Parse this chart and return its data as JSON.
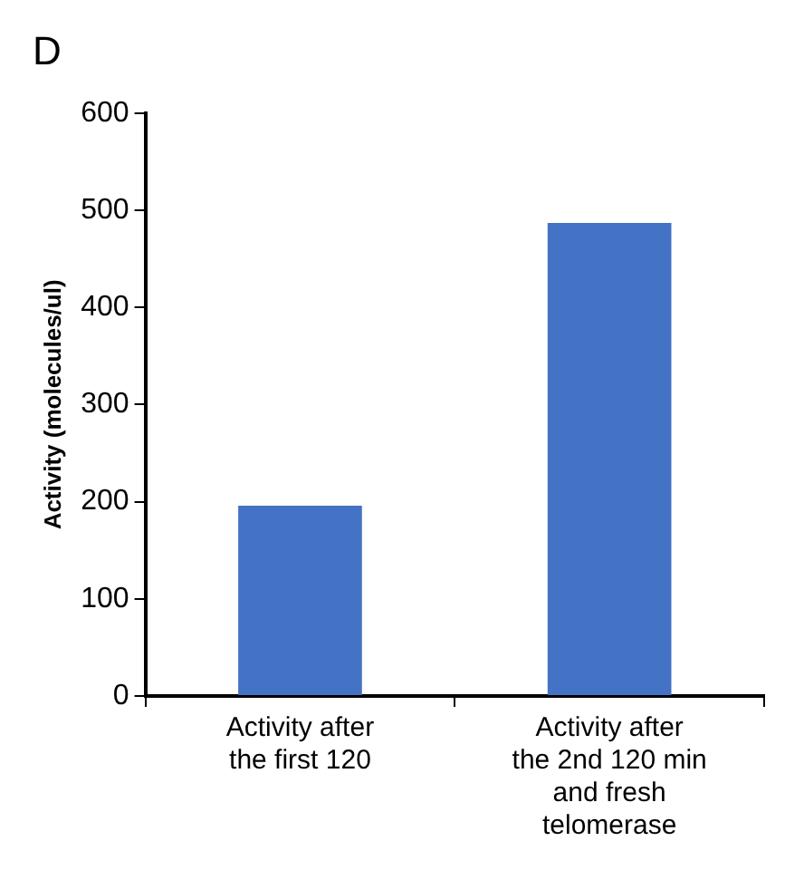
{
  "chart_data": {
    "type": "bar",
    "title": "D",
    "ylabel": "Activity (molecules/ul)",
    "categories": [
      "Activity after the first 120",
      "Activity after the 2nd 120 min and fresh telomerase"
    ],
    "values": [
      196,
      487
    ],
    "color": "#4472c4",
    "ylim": [
      0,
      600
    ],
    "yticks": [
      0,
      100,
      200,
      300,
      400,
      500,
      600
    ],
    "grid": false,
    "legend": false
  }
}
